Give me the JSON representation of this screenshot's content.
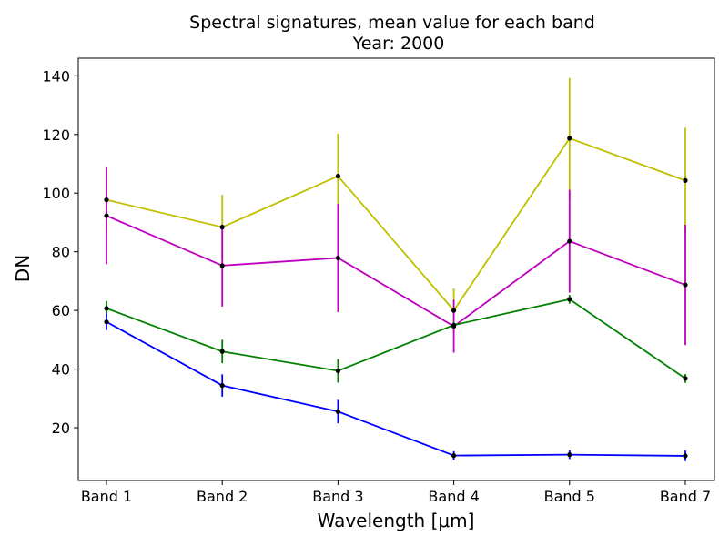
{
  "chart_data": {
    "type": "line",
    "title": "Spectral signatures, mean value for each band",
    "subtitle": "Year: 2000",
    "xlabel": "Wavelength [μm]",
    "ylabel": "DN",
    "categories": [
      "Band 1",
      "Band 2",
      "Band 3",
      "Band 4",
      "Band 5",
      "Band 7"
    ],
    "ylim": [
      2,
      146
    ],
    "yticks": [
      20,
      40,
      60,
      80,
      100,
      120,
      140
    ],
    "grid": false,
    "legend": "none",
    "series": [
      {
        "color": "#bfbf00",
        "values": [
          97.7,
          88.4,
          105.8,
          60.0,
          118.7,
          104.3
        ],
        "errors": [
          11.0,
          11.0,
          14.5,
          7.5,
          20.5,
          18.0
        ]
      },
      {
        "color": "#bf00bf",
        "values": [
          92.3,
          75.3,
          77.9,
          54.6,
          83.6,
          68.7
        ],
        "errors": [
          16.5,
          14.0,
          18.5,
          9.0,
          17.5,
          20.5
        ]
      },
      {
        "color": "#008000",
        "values": [
          60.7,
          46.0,
          39.4,
          55.0,
          63.8,
          36.8
        ],
        "errors": [
          2.5,
          4.0,
          4.0,
          1.0,
          1.5,
          1.5
        ]
      },
      {
        "color": "#0000ff",
        "values": [
          56.1,
          34.4,
          25.5,
          10.5,
          10.8,
          10.4
        ],
        "errors": [
          2.8,
          3.8,
          4.0,
          1.5,
          1.5,
          1.8
        ]
      }
    ]
  }
}
